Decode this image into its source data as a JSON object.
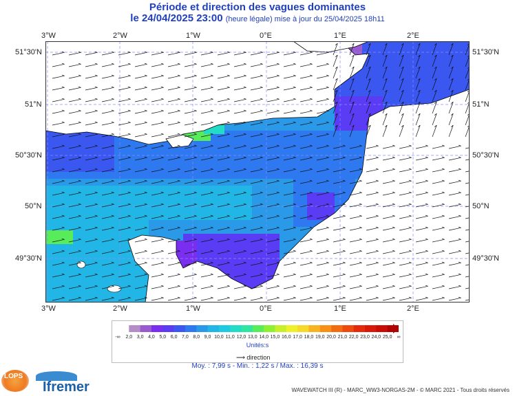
{
  "header": {
    "title": "Période et direction des vagues dominantes",
    "date_line": "le 24/04/2025 23:00",
    "update_note": "(heure légale) mise à jour du 25/04/2025 18h11"
  },
  "map": {
    "top_ticks": [
      "3°W",
      "2°W",
      "1°W",
      "0°E",
      "1°E",
      "2°E"
    ],
    "bottom_ticks": [
      "3°W",
      "2°W",
      "1°W",
      "0°E",
      "1°E",
      "2°E"
    ],
    "left_ticks": [
      "51°30'N",
      "51°N",
      "50°30'N",
      "50°N",
      "49°30'N"
    ],
    "right_ticks": [
      "51°30'N",
      "51°N",
      "50°30'N",
      "50°N",
      "49°30'N"
    ],
    "land_color": "#ffffff",
    "grid_color": "#8a8aff",
    "dominant_direction": "east-northeast"
  },
  "legend": {
    "labels": [
      "-∞",
      "2,0",
      "3,0",
      "4,0",
      "5,0",
      "6,0",
      "7,0",
      "8,0",
      "9,0",
      "10,0",
      "11,0",
      "12,0",
      "13,0",
      "14,0",
      "15,0",
      "16,0",
      "17,0",
      "18,0",
      "19,0",
      "20,0",
      "21,0",
      "22,0",
      "23,0",
      "24,0",
      "25,0",
      "∞"
    ],
    "colors": [
      "#ffffff",
      "#b48cc8",
      "#9a5ad0",
      "#7a2ef0",
      "#5a3cf5",
      "#3a58f0",
      "#2e78f0",
      "#2a9ae8",
      "#22b6e6",
      "#1ecae0",
      "#22dcc8",
      "#2ee6a0",
      "#58ec5a",
      "#8ef032",
      "#c8f02a",
      "#f0f02a",
      "#f8d828",
      "#f8b420",
      "#f89018",
      "#f46c12",
      "#ee4a0e",
      "#e42a0a",
      "#d81808",
      "#c80c06",
      "#b00404"
    ],
    "units": "Unités:s",
    "direction_label": "direction"
  },
  "stats": {
    "text": "Moy. : 7,99 s   -   Min. : 1,22 s / Max. : 16,39 s"
  },
  "footer": {
    "credit": "WAVEWATCH III (R) - MARC_WW3-NORGAS-2M - © MARC 2021 - Tous droits réservés",
    "brand": "Ifremer",
    "lops": "LOPS"
  }
}
